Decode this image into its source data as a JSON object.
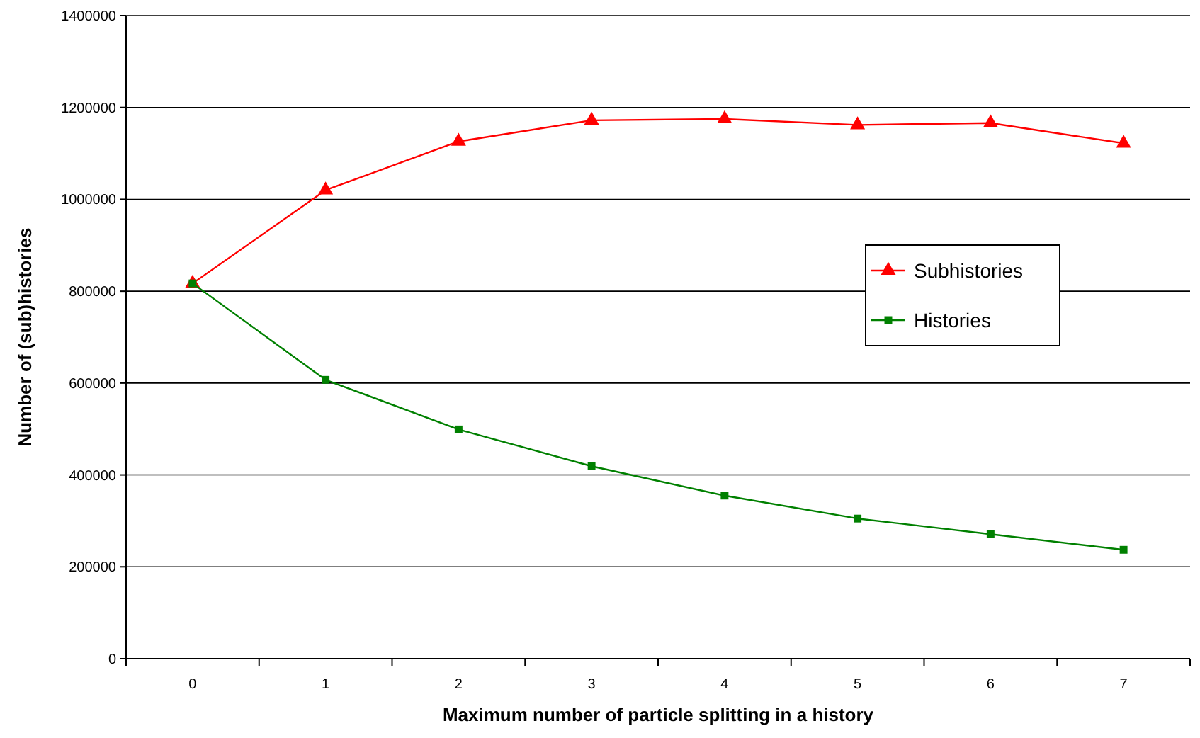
{
  "chart_data": {
    "type": "line",
    "xlabel": "Maximum number of particle splitting in a history",
    "ylabel": "Number of (sub)histories",
    "categories": [
      "0",
      "1",
      "2",
      "3",
      "4",
      "5",
      "6",
      "7"
    ],
    "series": [
      {
        "name": "Subhistories",
        "color": "#ff0000",
        "marker": "triangle",
        "values": [
          817000,
          1020000,
          1126000,
          1172000,
          1175000,
          1162000,
          1166000,
          1122000
        ]
      },
      {
        "name": "Histories",
        "color": "#008000",
        "marker": "square",
        "values": [
          817000,
          607000,
          499000,
          419000,
          355000,
          305000,
          271000,
          237000
        ]
      }
    ],
    "ylim": [
      0,
      1400000
    ],
    "yticks": [
      0,
      200000,
      400000,
      600000,
      800000,
      1000000,
      1200000,
      1400000
    ],
    "grid": "y",
    "legend": "right",
    "line_style": "solid"
  }
}
